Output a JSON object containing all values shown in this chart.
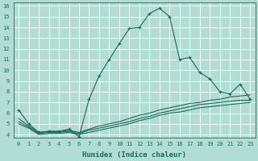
{
  "xlabel": "Humidex (Indice chaleur)",
  "bg_color": "#b2ddd4",
  "grid_color": "#ffffff",
  "line_color": "#1a6b5a",
  "xlim": [
    -0.5,
    23.5
  ],
  "ylim": [
    3.7,
    16.3
  ],
  "xticks": [
    0,
    1,
    2,
    3,
    4,
    5,
    6,
    7,
    8,
    9,
    10,
    11,
    12,
    13,
    14,
    15,
    16,
    17,
    18,
    19,
    20,
    21,
    22,
    23
  ],
  "yticks": [
    4,
    5,
    6,
    7,
    8,
    9,
    10,
    11,
    12,
    13,
    14,
    15,
    16
  ],
  "lines": [
    {
      "x": [
        0,
        1,
        2,
        3,
        4,
        5,
        6,
        7,
        8,
        9,
        10,
        11,
        12,
        13,
        14,
        15,
        16,
        17,
        18,
        19,
        20,
        21,
        22,
        23
      ],
      "y": [
        6.3,
        5.0,
        4.2,
        4.3,
        4.3,
        4.5,
        3.8,
        7.3,
        9.5,
        11.0,
        12.5,
        13.9,
        14.0,
        15.3,
        15.8,
        15.0,
        11.0,
        11.2,
        9.8,
        9.2,
        8.0,
        7.8,
        8.7,
        7.3
      ],
      "marker": true
    },
    {
      "x": [
        0,
        1,
        2,
        3,
        4,
        5,
        6,
        7,
        8,
        9,
        10,
        11,
        12,
        13,
        14,
        15,
        16,
        17,
        18,
        19,
        20,
        21,
        22,
        23
      ],
      "y": [
        5.5,
        4.8,
        4.2,
        4.3,
        4.3,
        4.4,
        4.2,
        4.5,
        4.8,
        5.0,
        5.2,
        5.5,
        5.8,
        6.0,
        6.3,
        6.5,
        6.7,
        6.9,
        7.0,
        7.2,
        7.3,
        7.5,
        7.6,
        7.7
      ],
      "marker": false
    },
    {
      "x": [
        0,
        1,
        2,
        3,
        4,
        5,
        6,
        7,
        8,
        9,
        10,
        11,
        12,
        13,
        14,
        15,
        16,
        17,
        18,
        19,
        20,
        21,
        22,
        23
      ],
      "y": [
        5.2,
        4.7,
        4.1,
        4.2,
        4.2,
        4.3,
        4.1,
        4.4,
        4.6,
        4.8,
        5.0,
        5.2,
        5.5,
        5.7,
        6.0,
        6.2,
        6.4,
        6.6,
        6.8,
        6.9,
        7.0,
        7.1,
        7.2,
        7.2
      ],
      "marker": false
    },
    {
      "x": [
        0,
        1,
        2,
        3,
        4,
        5,
        6,
        7,
        8,
        9,
        10,
        11,
        12,
        13,
        14,
        15,
        16,
        17,
        18,
        19,
        20,
        21,
        22,
        23
      ],
      "y": [
        5.0,
        4.6,
        4.0,
        4.1,
        4.1,
        4.2,
        4.0,
        4.2,
        4.4,
        4.6,
        4.8,
        5.0,
        5.3,
        5.5,
        5.8,
        6.0,
        6.1,
        6.3,
        6.5,
        6.6,
        6.7,
        6.8,
        6.9,
        7.0
      ],
      "marker": false
    }
  ],
  "tick_fontsize": 5.0,
  "xlabel_fontsize": 6.5
}
